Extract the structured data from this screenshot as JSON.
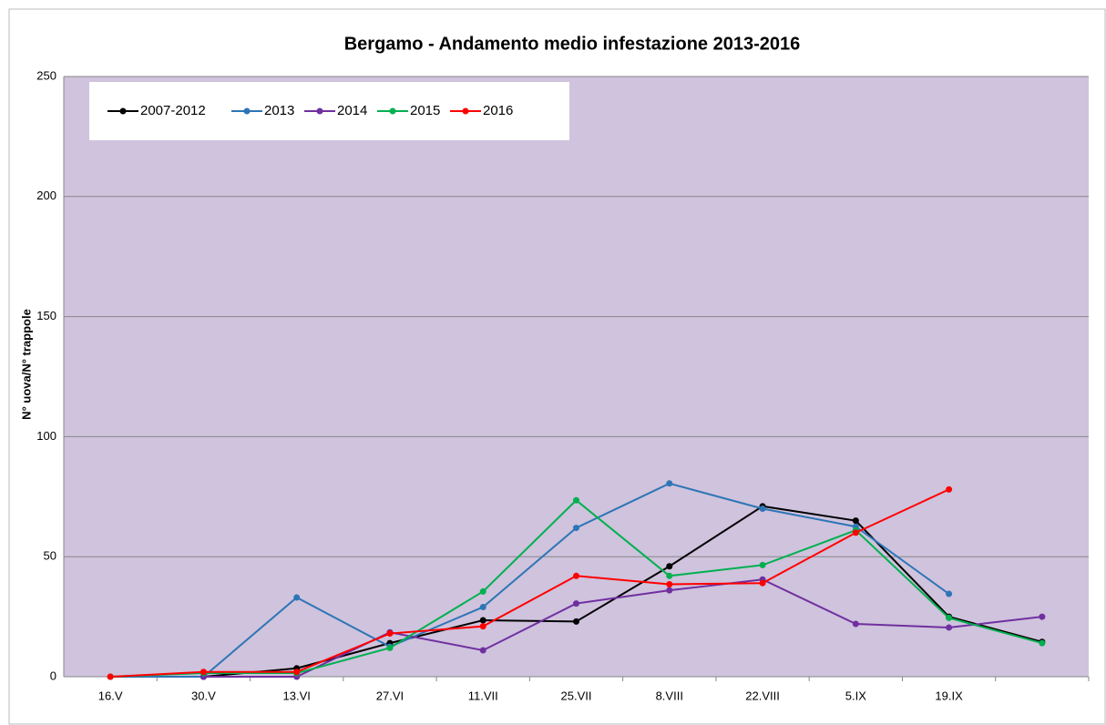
{
  "chart_data": {
    "type": "line",
    "title": "Bergamo - Andamento medio infestazione 2013-2016",
    "y_label": "N° uova/N° trappole",
    "categories": [
      "16.V",
      "30.V",
      "13.VI",
      "27.VI",
      "11.VII",
      "25.VII",
      "8.VIII",
      "22.VIII",
      "5.IX",
      "19.IX",
      null
    ],
    "series": [
      {
        "name": "2007-2012",
        "color": "#000000",
        "values": [
          null,
          0,
          3.5,
          14,
          23.5,
          23,
          46,
          71,
          65,
          25,
          14.5
        ]
      },
      {
        "name": "2013",
        "color": "#2e75b6",
        "values": [
          0,
          0,
          33,
          12.5,
          29,
          62,
          80.5,
          70,
          62.5,
          34.5,
          null
        ]
      },
      {
        "name": "2014",
        "color": "#7030a0",
        "values": [
          null,
          0,
          0,
          18.5,
          11,
          30.5,
          36,
          40.5,
          22,
          20.5,
          25
        ]
      },
      {
        "name": "2015",
        "color": "#00b050",
        "values": [
          0,
          1.5,
          1.5,
          12,
          35.5,
          73.5,
          42,
          46.5,
          61,
          24.5,
          14
        ]
      },
      {
        "name": "2016",
        "color": "#ff0000",
        "values": [
          0,
          2,
          2,
          18,
          21,
          42,
          38.5,
          39,
          60,
          78,
          null
        ]
      }
    ],
    "ylim": [
      0,
      250
    ],
    "yticks": [
      0,
      50,
      100,
      150,
      200,
      250
    ],
    "grid": true,
    "legend": "top-left"
  }
}
